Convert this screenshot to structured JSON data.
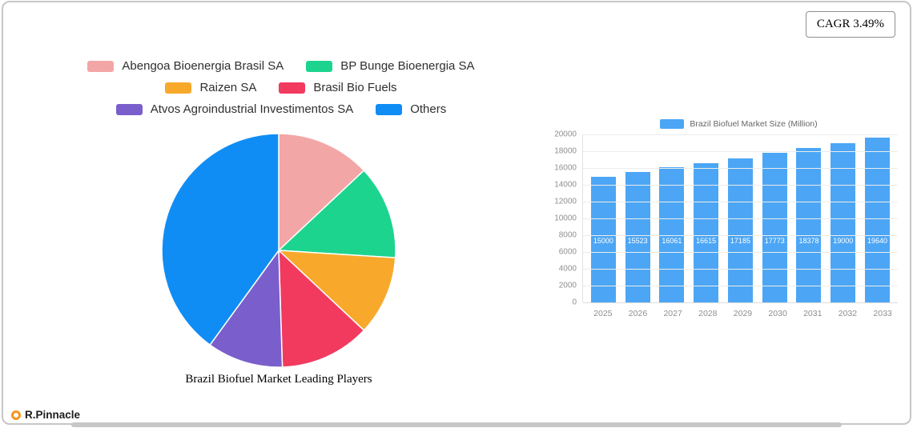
{
  "badge": {
    "label": "CAGR 3.49%"
  },
  "brand": {
    "label": "R.Pinnacle",
    "icon_color": "#F7941E"
  },
  "chart_data": [
    {
      "type": "pie",
      "title": "Brazil Biofuel Market Leading Players",
      "labels": [
        "Abengoa Bioenergia Brasil SA",
        "BP Bunge Bioenergia SA",
        "Raizen SA",
        "Brasil Bio Fuels",
        "Atvos Agroindustrial Investimentos SA",
        "Others"
      ],
      "values": [
        13,
        13,
        11,
        12.5,
        10.5,
        40
      ],
      "values_estimated_from_angles": true,
      "colors": [
        "#F3A6A6",
        "#1DD48F",
        "#F8A92B",
        "#F23A5F",
        "#7A5FCC",
        "#0F8DF5"
      ],
      "legend_position": "top",
      "start_angle_deg": 0,
      "direction": "clockwise"
    },
    {
      "type": "bar",
      "title": "Brazil Biofuel Market Size (Million)",
      "categories": [
        "2025",
        "2026",
        "2027",
        "2028",
        "2029",
        "2030",
        "2031",
        "2032",
        "2033"
      ],
      "values": [
        15000,
        15523,
        16061,
        16615,
        17185,
        17773,
        18378,
        19000,
        19640
      ],
      "ylim": [
        0,
        20000
      ],
      "ytick_step": 2000,
      "bar_color": "#4CA6F5",
      "grid": true,
      "legend_position": "top",
      "value_labels": "inside-bars-white"
    }
  ]
}
